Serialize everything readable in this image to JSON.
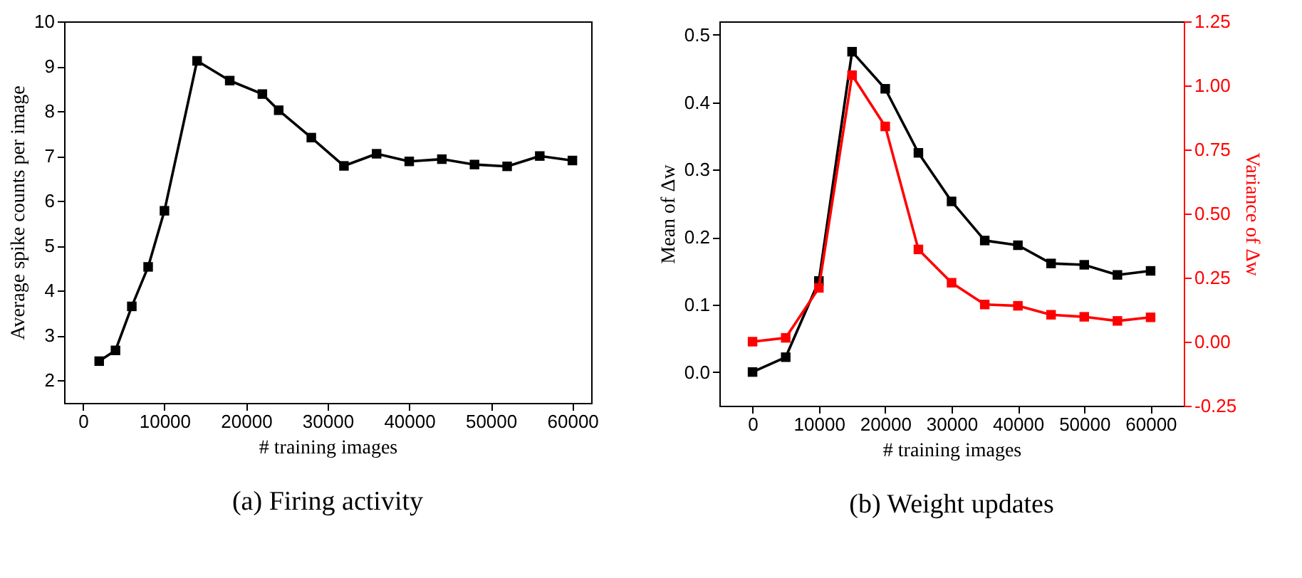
{
  "chart_data": [
    {
      "type": "line",
      "title": "(a) Firing activity",
      "xlabel": "# training images",
      "ylabel": "Average spike counts per image",
      "x": [
        2000,
        4000,
        6000,
        8000,
        10000,
        14000,
        18000,
        22000,
        24000,
        28000,
        32000,
        36000,
        40000,
        44000,
        48000,
        52000,
        56000,
        60000
      ],
      "series": [
        {
          "color": "#000000",
          "values": [
            2.43,
            2.67,
            3.65,
            4.53,
            5.78,
            9.12,
            8.68,
            8.38,
            8.02,
            7.41,
            6.78,
            7.05,
            6.88,
            6.93,
            6.81,
            6.77,
            7.0,
            6.9
          ]
        }
      ],
      "xlim": [
        -2300,
        62300
      ],
      "xticks": [
        0,
        10000,
        20000,
        30000,
        40000,
        50000,
        60000
      ],
      "ylim": [
        1.5,
        10
      ],
      "yticks": [
        2,
        3,
        4,
        5,
        6,
        7,
        8,
        9,
        10
      ],
      "grid": false,
      "marker": "square",
      "line_style": "solid"
    },
    {
      "type": "line",
      "title": "(b) Weight updates",
      "xlabel": "# training images",
      "ylabel": "Mean of Δw",
      "y2label": "Variance of Δw",
      "x": [
        0,
        5000,
        10000,
        15000,
        20000,
        25000,
        30000,
        35000,
        40000,
        45000,
        50000,
        55000,
        60000
      ],
      "series": [
        {
          "color": "#000000",
          "values": [
            0.0,
            0.022,
            0.135,
            0.475,
            0.42,
            0.325,
            0.253,
            0.195,
            0.188,
            0.161,
            0.159,
            0.144,
            0.15
          ]
        },
        {
          "color": "#ff0000",
          "axis": "y2",
          "values": [
            0.0,
            0.015,
            0.21,
            1.04,
            0.84,
            0.36,
            0.23,
            0.145,
            0.14,
            0.105,
            0.097,
            0.081,
            0.095
          ]
        }
      ],
      "xlim": [
        -5000,
        65000
      ],
      "xticks": [
        0,
        10000,
        20000,
        30000,
        40000,
        50000,
        60000
      ],
      "ylim": [
        -0.05,
        0.52
      ],
      "yticks": [
        {
          "value": 0,
          "label": "0.0"
        },
        0.1,
        0.2,
        0.3,
        0.4,
        0.5
      ],
      "y2lim": [
        -0.25,
        1.25
      ],
      "y2ticks": [
        -0.25,
        {
          "value": 0,
          "label": "0.00"
        },
        0.25,
        {
          "value": 0.5,
          "label": "0.50"
        },
        0.75,
        {
          "value": 1,
          "label": "1.00"
        },
        1.25
      ],
      "grid": false,
      "marker": "square",
      "line_style": "solid"
    }
  ]
}
